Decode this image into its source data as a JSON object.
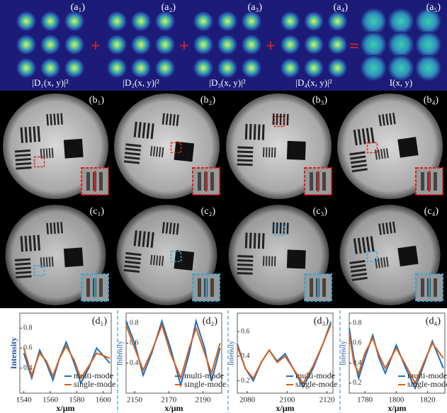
{
  "figure": {
    "row_a": {
      "labels": [
        "(a₁)",
        "(a₂)",
        "(a₃)",
        "(a₄)",
        "(a₅)"
      ],
      "captions": [
        "|D₁(x, y)|²",
        "|D₂(x, y)|²",
        "|D₃(x, y)|²",
        "|D₄(x, y)|²",
        "I(x, y)"
      ],
      "operators": [
        "+",
        "+",
        "+",
        "="
      ]
    },
    "row_b": {
      "labels": [
        "(b₁)",
        "(b₂)",
        "(b₃)",
        "(b₄)"
      ]
    },
    "row_c": {
      "labels": [
        "(c₁)",
        "(c₂)",
        "(c₃)",
        "(c₄)"
      ]
    }
  },
  "chart_data": [
    {
      "type": "line",
      "label": "(d₁)",
      "x_label": "x/μm",
      "y_label": "Intensity",
      "x": [
        1540,
        1546,
        1552,
        1557,
        1562,
        1567,
        1572,
        1578,
        1583,
        1589,
        1595,
        1605
      ],
      "series": [
        {
          "name": "multi-mode",
          "color": "#1f6fbf",
          "values": [
            0.55,
            0.3,
            0.58,
            0.45,
            0.28,
            0.5,
            0.66,
            0.45,
            0.25,
            0.4,
            0.6,
            0.45
          ]
        },
        {
          "name": "single-mode",
          "color": "#d9601a",
          "values": [
            0.6,
            0.33,
            0.55,
            0.47,
            0.32,
            0.5,
            0.62,
            0.48,
            0.3,
            0.42,
            0.55,
            0.5
          ]
        }
      ],
      "xlim": [
        1537,
        1606
      ],
      "ylim": [
        0.15,
        0.95
      ],
      "xticks": [
        1540,
        1560,
        1580,
        1600
      ],
      "yticks": [
        0.4,
        0.6,
        0.8
      ]
    },
    {
      "type": "line",
      "label": "(d₂)",
      "x_label": "x/μm",
      "y_label": "Intensity",
      "x": [
        2145,
        2150,
        2155,
        2160,
        2166,
        2171,
        2177,
        2182,
        2186,
        2191,
        2195,
        2200
      ],
      "series": [
        {
          "name": "multi-mode",
          "color": "#1f6fbf",
          "values": [
            0.82,
            0.6,
            0.28,
            0.5,
            0.82,
            0.55,
            0.18,
            0.5,
            0.82,
            0.55,
            0.22,
            0.55
          ]
        },
        {
          "name": "single-mode",
          "color": "#d9601a",
          "values": [
            0.78,
            0.55,
            0.33,
            0.52,
            0.78,
            0.5,
            0.25,
            0.55,
            0.75,
            0.5,
            0.3,
            0.6
          ]
        }
      ],
      "xlim": [
        2145,
        2201
      ],
      "ylim": [
        0.1,
        0.9
      ],
      "xticks": [
        2150,
        2170,
        2190
      ],
      "yticks": [
        0.4,
        0.6,
        0.8
      ]
    },
    {
      "type": "line",
      "label": "(d₃)",
      "x_label": "x/μm",
      "y_label": "Intensity",
      "x": [
        2075,
        2079,
        2083,
        2087,
        2091,
        2095,
        2099,
        2103,
        2108,
        2113,
        2118,
        2122
      ],
      "series": [
        {
          "name": "multi-mode",
          "color": "#1f6fbf",
          "values": [
            0.5,
            0.3,
            0.2,
            0.35,
            0.45,
            0.36,
            0.42,
            0.3,
            0.15,
            0.3,
            0.5,
            0.68
          ]
        },
        {
          "name": "single-mode",
          "color": "#d9601a",
          "values": [
            0.48,
            0.3,
            0.22,
            0.35,
            0.45,
            0.35,
            0.4,
            0.3,
            0.18,
            0.32,
            0.5,
            0.66
          ]
        }
      ],
      "xlim": [
        2075,
        2123
      ],
      "ylim": [
        0.1,
        0.75
      ],
      "xticks": [
        2080,
        2100,
        2120
      ],
      "yticks": [
        0.2,
        0.4,
        0.6
      ]
    },
    {
      "type": "line",
      "label": "(d₄)",
      "x_label": "x/μm",
      "y_label": "Intensity",
      "x": [
        1770,
        1773,
        1776,
        1780,
        1785,
        1789,
        1793,
        1800,
        1806,
        1812,
        1818,
        1823,
        1830
      ],
      "series": [
        {
          "name": "multi-mode",
          "color": "#1f6fbf",
          "values": [
            0.75,
            0.45,
            0.25,
            0.45,
            0.68,
            0.45,
            0.3,
            0.58,
            0.35,
            0.15,
            0.4,
            0.62,
            0.35
          ]
        },
        {
          "name": "single-mode",
          "color": "#d9601a",
          "values": [
            0.7,
            0.4,
            0.3,
            0.5,
            0.65,
            0.48,
            0.35,
            0.55,
            0.38,
            0.2,
            0.42,
            0.6,
            0.45
          ]
        }
      ],
      "xlim": [
        1770,
        1831
      ],
      "ylim": [
        0.1,
        0.9
      ],
      "xticks": [
        1780,
        1800,
        1820
      ],
      "yticks": [
        0.2,
        0.4,
        0.6,
        0.8
      ]
    }
  ]
}
